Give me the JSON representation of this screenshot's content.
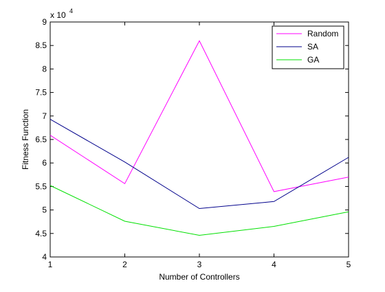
{
  "chart_data": {
    "type": "line",
    "x": [
      1,
      2,
      3,
      4,
      5
    ],
    "series": [
      {
        "name": "Random",
        "color": "#ff00ff",
        "values": [
          65900,
          55600,
          86000,
          53900,
          57000
        ]
      },
      {
        "name": "SA",
        "color": "#00008b",
        "values": [
          69300,
          60200,
          50300,
          51800,
          61200
        ]
      },
      {
        "name": "GA",
        "color": "#00e000",
        "values": [
          55200,
          47600,
          44600,
          46500,
          49600
        ]
      }
    ],
    "xlabel": "Number of Controllers",
    "ylabel": "Fitness Function",
    "xlim": [
      1,
      5
    ],
    "ylim": [
      40000,
      90000
    ],
    "x_ticks": [
      "1",
      "2",
      "3",
      "4",
      "5"
    ],
    "y_ticks": [
      "4",
      "4.5",
      "5",
      "5.5",
      "6",
      "6.5",
      "7",
      "7.5",
      "8",
      "8.5",
      "9"
    ],
    "y_multiplier": {
      "base": "x 10",
      "exponent": "4"
    },
    "grid": false,
    "legend_position": "top-right"
  }
}
